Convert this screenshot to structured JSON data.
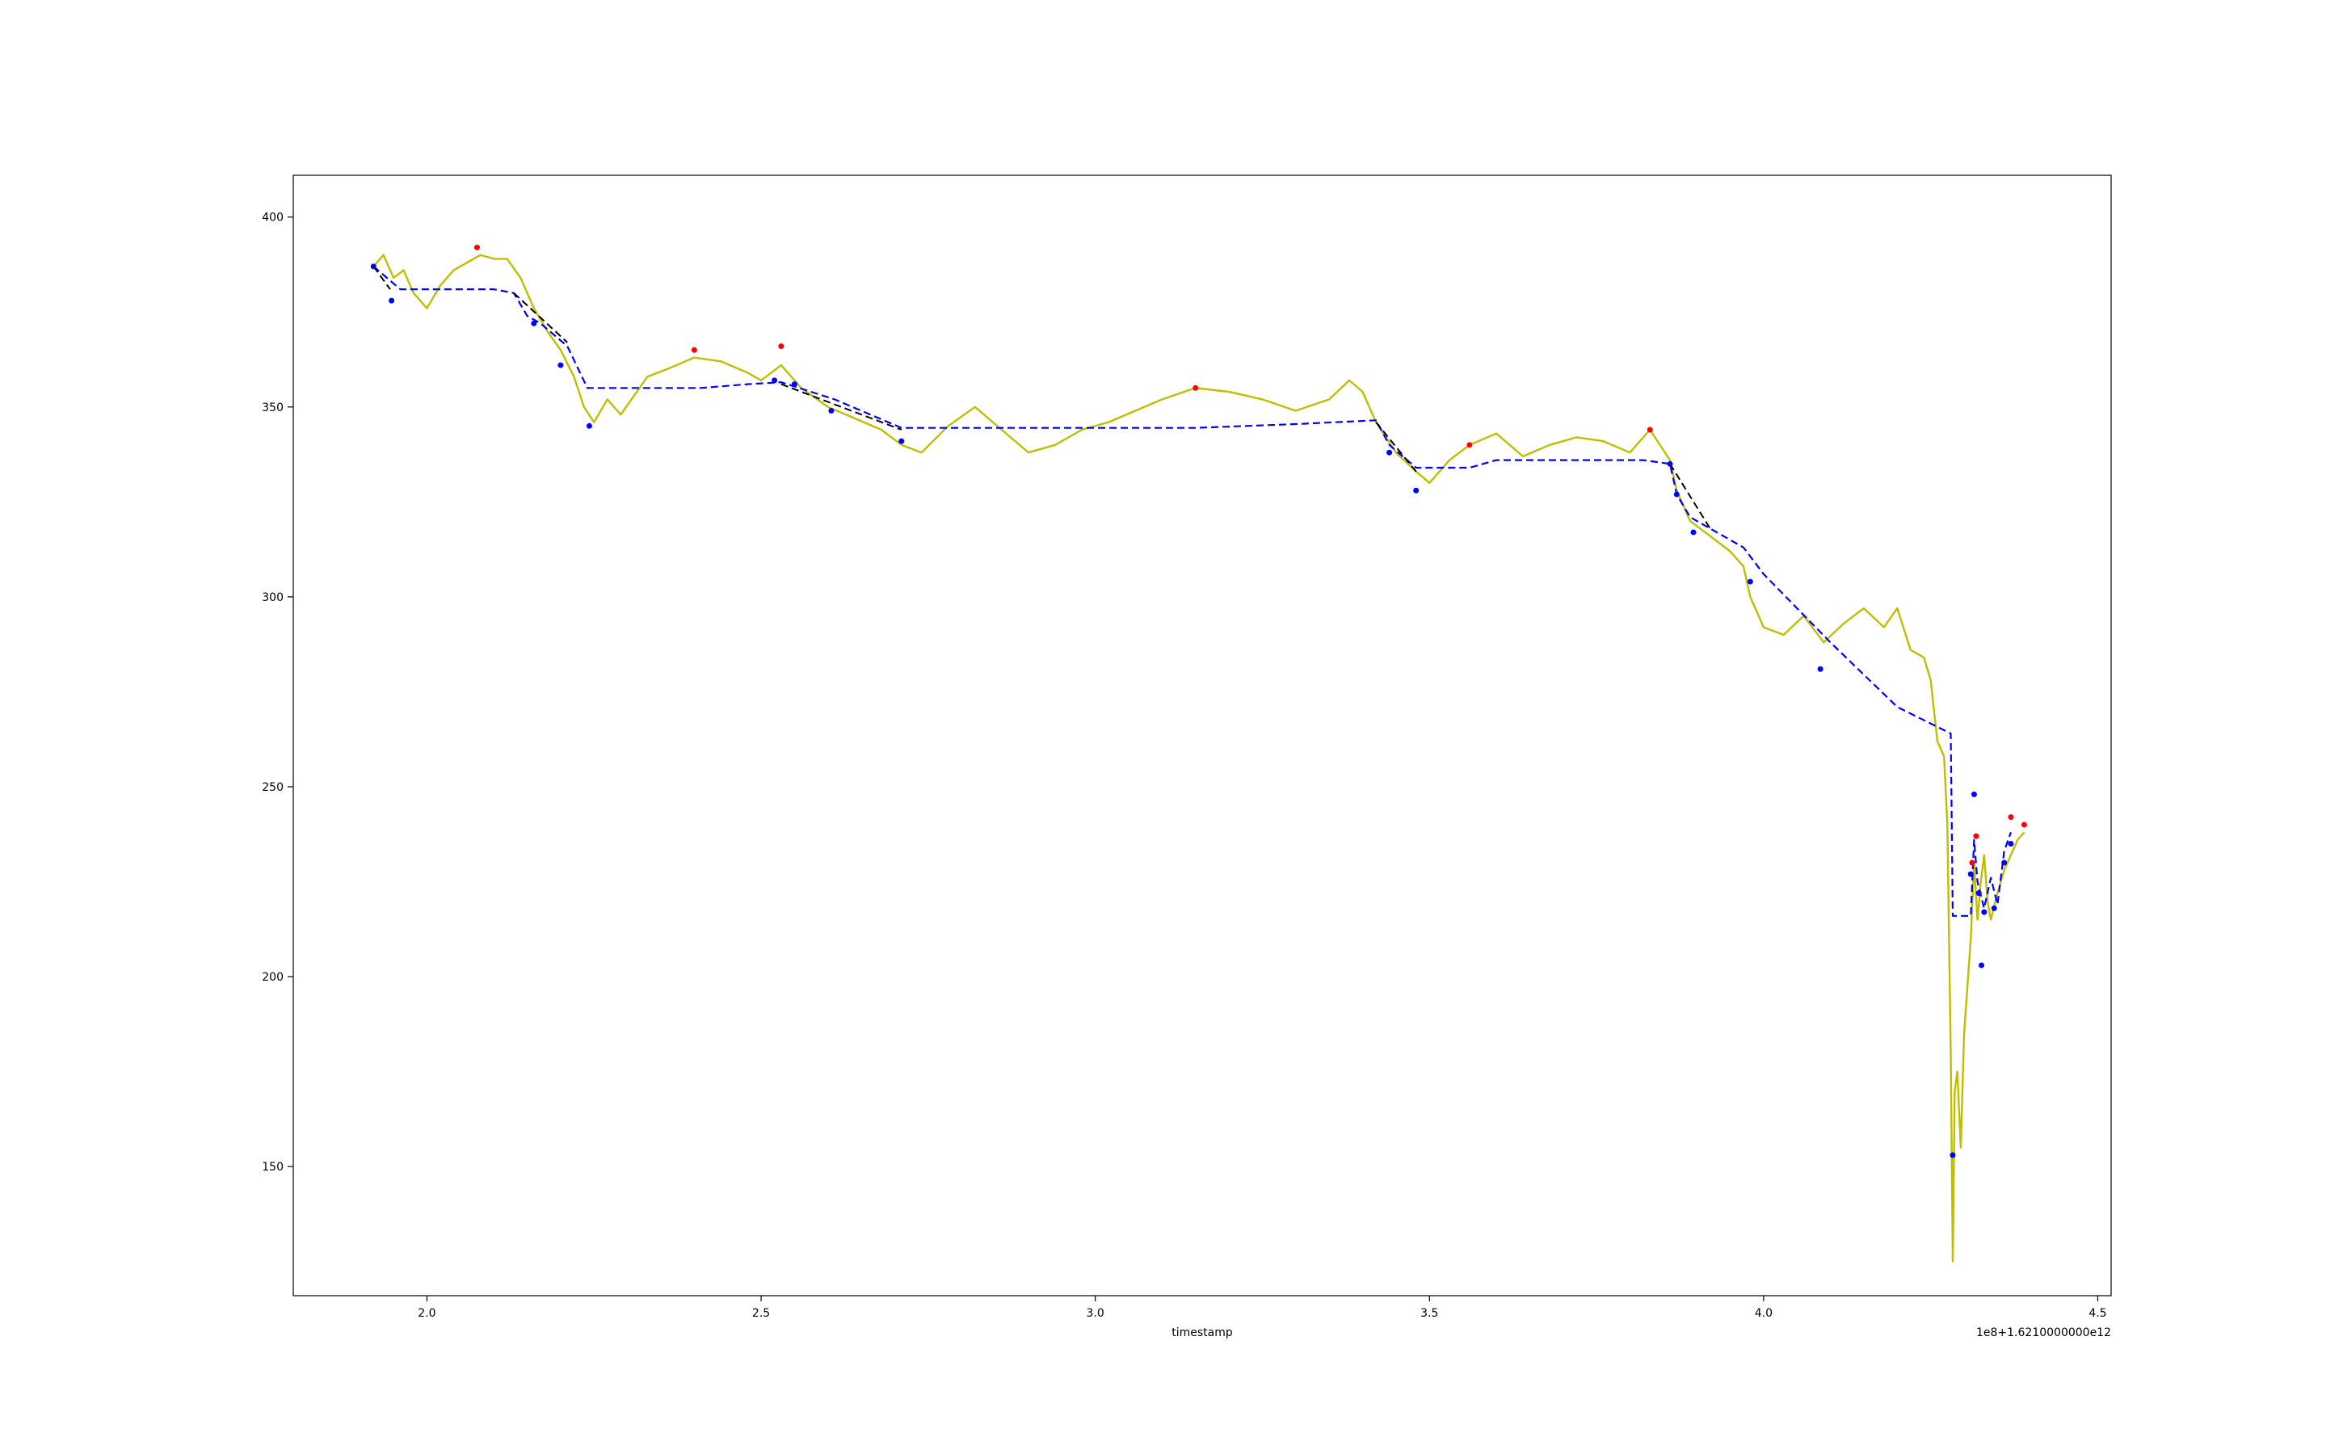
{
  "chart_data": {
    "type": "line",
    "title": "",
    "xlabel": "timestamp",
    "ylabel": "",
    "x_offset_text": "1e8+1.6210000000e12",
    "xlim": [
      1.8,
      4.52
    ],
    "ylim": [
      116,
      411
    ],
    "xticks": [
      2.0,
      2.5,
      3.0,
      3.5,
      4.0,
      4.5
    ],
    "xtick_labels": [
      "2.0",
      "2.5",
      "3.0",
      "3.5",
      "4.0",
      "4.5"
    ],
    "yticks": [
      150,
      200,
      250,
      300,
      350,
      400
    ],
    "ytick_labels": [
      "150",
      "200",
      "250",
      "300",
      "350",
      "400"
    ],
    "grid": false,
    "colors": {
      "price": "#bfbf00",
      "trend": "#0000ff",
      "dark_segments": "#000000",
      "low_markers": "#0000ff",
      "high_markers": "#ff0000",
      "frame": "#000000"
    },
    "series": [
      {
        "style": "solid",
        "color": "#bfbf00",
        "x": [
          1.92,
          1.935,
          1.95,
          1.965,
          1.98,
          2.0,
          2.02,
          2.04,
          2.06,
          2.08,
          2.1,
          2.12,
          2.14,
          2.16,
          2.18,
          2.2,
          2.22,
          2.235,
          2.25,
          2.27,
          2.29,
          2.31,
          2.33,
          2.36,
          2.4,
          2.44,
          2.48,
          2.5,
          2.53,
          2.56,
          2.6,
          2.64,
          2.68,
          2.71,
          2.74,
          2.78,
          2.82,
          2.86,
          2.9,
          2.94,
          2.98,
          3.02,
          3.06,
          3.1,
          3.15,
          3.2,
          3.25,
          3.3,
          3.35,
          3.38,
          3.4,
          3.42,
          3.45,
          3.48,
          3.5,
          3.53,
          3.56,
          3.6,
          3.64,
          3.68,
          3.72,
          3.76,
          3.8,
          3.83,
          3.86,
          3.87,
          3.89,
          3.92,
          3.95,
          3.97,
          3.98,
          4.0,
          4.03,
          4.06,
          4.09,
          4.12,
          4.15,
          4.18,
          4.2,
          4.22,
          4.24,
          4.25,
          4.26,
          4.27,
          4.275,
          4.28,
          4.283,
          4.286,
          4.29,
          4.295,
          4.3,
          4.31,
          4.315,
          4.32,
          4.325,
          4.33,
          4.335,
          4.34,
          4.35,
          4.36,
          4.37,
          4.38,
          4.39
        ],
        "y": [
          387,
          390,
          384,
          386,
          380,
          376,
          382,
          386,
          388,
          390,
          389,
          389,
          384,
          376,
          370,
          365,
          358,
          350,
          346,
          352,
          348,
          353,
          358,
          360,
          363,
          362,
          359,
          357,
          361,
          355,
          350,
          347,
          344,
          340,
          338,
          345,
          350,
          344,
          338,
          340,
          344,
          346,
          349,
          352,
          355,
          354,
          352,
          349,
          352,
          357,
          354,
          346,
          338,
          333,
          330,
          336,
          340,
          343,
          337,
          340,
          342,
          341,
          338,
          344,
          336,
          328,
          320,
          316,
          312,
          308,
          300,
          292,
          290,
          295,
          288,
          293,
          297,
          292,
          297,
          286,
          284,
          278,
          262,
          258,
          240,
          180,
          125,
          170,
          175,
          155,
          185,
          210,
          230,
          215,
          225,
          232,
          220,
          215,
          222,
          228,
          232,
          236,
          238
        ]
      },
      {
        "style": "dashed",
        "color": "#0000ff",
        "x": [
          1.92,
          1.96,
          2.0,
          2.05,
          2.1,
          2.13,
          2.15,
          2.17,
          2.21,
          2.24,
          2.28,
          2.33,
          2.41,
          2.48,
          2.53,
          2.61,
          2.71,
          2.8,
          2.9,
          3.0,
          3.15,
          3.3,
          3.42,
          3.44,
          3.48,
          3.56,
          3.6,
          3.66,
          3.74,
          3.82,
          3.86,
          3.87,
          3.89,
          3.97,
          4.0,
          4.1,
          4.2,
          4.28,
          4.283,
          4.31,
          4.315,
          4.32,
          4.33,
          4.34,
          4.35,
          4.36,
          4.37
        ],
        "y": [
          387,
          381,
          381,
          381,
          381,
          380,
          374,
          372,
          366,
          355,
          355,
          355,
          355,
          356,
          356.5,
          352,
          344.5,
          344.5,
          344.5,
          344.5,
          344.5,
          345.5,
          346.5,
          340,
          334,
          334,
          336,
          336,
          336,
          336,
          335,
          327,
          321,
          313,
          306,
          288,
          271,
          264,
          216,
          216,
          236,
          225,
          218,
          226,
          219,
          233,
          238
        ]
      }
    ],
    "dark_segments": [
      {
        "x": [
          1.92,
          1.945
        ],
        "y": [
          387,
          381
        ]
      },
      {
        "x": [
          2.13,
          2.21
        ],
        "y": [
          380,
          367
        ]
      },
      {
        "x": [
          2.53,
          2.71
        ],
        "y": [
          356,
          344
        ]
      },
      {
        "x": [
          3.42,
          3.48
        ],
        "y": [
          346,
          333
        ]
      },
      {
        "x": [
          3.86,
          3.92
        ],
        "y": [
          335,
          318
        ]
      }
    ],
    "low_markers": {
      "x": [
        1.92,
        1.947,
        2.16,
        2.2,
        2.243,
        2.52,
        2.55,
        2.605,
        2.71,
        3.44,
        3.48,
        3.86,
        3.87,
        3.895,
        3.98,
        4.085,
        4.283,
        4.31,
        4.315,
        4.322,
        4.326,
        4.33,
        4.345,
        4.36,
        4.37
      ],
      "y": [
        387,
        378,
        372,
        361,
        345,
        357,
        356,
        349,
        341,
        338,
        328,
        335,
        327,
        317,
        304,
        281,
        153,
        227,
        248,
        222,
        203,
        217,
        218,
        230,
        235
      ]
    },
    "high_markers": {
      "x": [
        2.075,
        2.4,
        2.53,
        3.15,
        3.56,
        3.83,
        4.312,
        4.318,
        4.37,
        4.39
      ],
      "y": [
        392,
        365,
        366,
        355,
        340,
        344,
        230,
        237,
        242,
        240
      ]
    }
  }
}
